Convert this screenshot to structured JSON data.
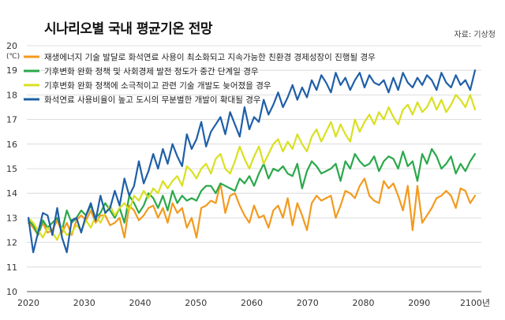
{
  "chart_data": {
    "type": "line",
    "title": "시나리오별 국내 평균기온 전망",
    "source": "자료: 기상청",
    "y_unit": "(℃)",
    "ylim": [
      10,
      20
    ],
    "y_ticks": [
      11,
      12,
      13,
      14,
      15,
      16,
      17,
      18,
      19,
      20
    ],
    "y_tick_label_bottom": "10",
    "x_ticks": [
      "2020",
      "2030",
      "2040",
      "2050",
      "2060",
      "2070",
      "2080",
      "2090",
      "2100년"
    ],
    "xlim": [
      2020,
      2100
    ],
    "grid": "horizontal",
    "legend": "top-left",
    "x_start": 2020,
    "x_step": 2,
    "series": [
      {
        "name": "재생에너지 기술 발달로 화석연료 사용이 최소화되고 지속가능한 친환경 경제성장이 진행될 경우",
        "color": "#f39a1e",
        "values": [
          12.8,
          12.6,
          12.3,
          12.8,
          12.4,
          12.5,
          12.9,
          12.4,
          12.8,
          12.3,
          12.9,
          13.1,
          12.9,
          13.3,
          12.8,
          13.1,
          13.1,
          12.7,
          12.8,
          13.0,
          12.2,
          13.5,
          13.3,
          12.9,
          13.1,
          13.4,
          13.5,
          13.0,
          13.4,
          12.8,
          13.6,
          13.2,
          13.4,
          12.6,
          13.0,
          12.2,
          13.4,
          13.5,
          13.7,
          13.6,
          14.4,
          13.2,
          13.9,
          14.0,
          13.5,
          13.1,
          12.8,
          13.5,
          13.0,
          13.1,
          12.6,
          13.3,
          13.5,
          13.0,
          13.8,
          12.7,
          13.6,
          13.1,
          12.5,
          13.6,
          13.9,
          13.7,
          13.8,
          13.9,
          13.0,
          13.5,
          14.1,
          14.0,
          13.8,
          14.3,
          14.6,
          13.9,
          13.7,
          13.6,
          14.5,
          14.2,
          14.4,
          13.9,
          13.3,
          14.3,
          12.5,
          14.3,
          12.8,
          13.1,
          13.4,
          13.8,
          13.9,
          14.1,
          13.9,
          13.4,
          14.2,
          14.1,
          13.6,
          13.9
        ]
      },
      {
        "name": "기후변화 완화 정책 및 사회경제 발전 정도가 중간 단계일 경우",
        "color": "#2aa84a",
        "values": [
          12.9,
          12.7,
          12.3,
          12.9,
          12.6,
          12.8,
          13.0,
          12.5,
          13.3,
          12.8,
          13.0,
          13.3,
          13.1,
          13.5,
          13.0,
          13.2,
          13.6,
          13.3,
          13.0,
          13.4,
          12.8,
          13.9,
          13.6,
          13.2,
          13.5,
          14.0,
          13.8,
          13.4,
          13.9,
          13.3,
          14.1,
          13.6,
          13.9,
          13.7,
          13.8,
          13.7,
          14.1,
          14.3,
          14.3,
          14.0,
          14.4,
          14.3,
          14.2,
          14.1,
          14.6,
          14.4,
          14.7,
          14.3,
          14.8,
          15.2,
          14.6,
          15.0,
          14.9,
          15.1,
          14.8,
          14.7,
          15.2,
          14.2,
          14.9,
          15.3,
          15.1,
          14.8,
          14.9,
          15.0,
          15.2,
          14.5,
          15.3,
          15.0,
          15.6,
          15.3,
          15.1,
          15.2,
          15.5,
          14.9,
          15.3,
          15.5,
          15.4,
          15.0,
          15.7,
          15.1,
          15.3,
          14.5,
          15.6,
          15.2,
          15.8,
          15.5,
          15.0,
          15.2,
          15.5,
          14.8,
          15.2,
          14.9,
          15.3,
          15.6
        ]
      },
      {
        "name": "기후변화 완화 정책에 소극적이고 관련 기술 개발도 늦어졌을 경우",
        "color": "#d9e021",
        "values": [
          13.0,
          12.8,
          12.5,
          12.2,
          12.6,
          12.4,
          12.1,
          12.6,
          12.3,
          12.4,
          12.7,
          12.5,
          12.9,
          12.6,
          13.1,
          12.8,
          13.2,
          13.5,
          13.1,
          13.4,
          13.6,
          13.3,
          13.9,
          13.7,
          14.1,
          13.8,
          14.2,
          14.0,
          14.5,
          14.2,
          14.5,
          14.7,
          14.3,
          15.1,
          14.9,
          14.6,
          15.0,
          15.2,
          14.8,
          15.4,
          15.6,
          15.0,
          14.8,
          15.3,
          15.9,
          15.4,
          15.0,
          15.5,
          15.9,
          15.2,
          15.6,
          16.0,
          16.2,
          15.7,
          16.1,
          15.8,
          16.4,
          16.0,
          15.7,
          16.3,
          16.6,
          16.1,
          16.5,
          16.9,
          16.3,
          16.8,
          16.4,
          16.1,
          17.0,
          16.5,
          16.9,
          17.2,
          16.8,
          17.3,
          17.0,
          17.5,
          17.1,
          16.8,
          17.4,
          17.6,
          17.2,
          17.7,
          17.3,
          17.5,
          17.9,
          17.4,
          17.8,
          17.3,
          17.6,
          18.0,
          17.8,
          17.5,
          18.0,
          17.4
        ]
      },
      {
        "name": "화석연료 사용비율이 높고 도시의 무분별한 개발이 확대될 경우",
        "color": "#1f5fa8",
        "values": [
          13.0,
          11.6,
          12.4,
          13.2,
          13.1,
          12.3,
          13.4,
          12.2,
          11.6,
          12.9,
          13.0,
          12.4,
          13.1,
          13.6,
          12.9,
          13.9,
          13.2,
          13.4,
          14.1,
          13.5,
          14.6,
          13.9,
          14.3,
          15.3,
          14.4,
          14.9,
          15.6,
          15.0,
          15.8,
          15.2,
          16.0,
          15.5,
          15.1,
          16.4,
          15.8,
          16.2,
          16.9,
          15.9,
          16.5,
          16.8,
          17.1,
          16.4,
          17.3,
          16.8,
          16.3,
          17.5,
          16.6,
          17.1,
          16.9,
          17.8,
          17.2,
          17.6,
          18.1,
          17.5,
          17.9,
          18.4,
          17.8,
          18.3,
          17.9,
          18.6,
          18.2,
          18.8,
          18.5,
          18.1,
          18.9,
          18.4,
          18.7,
          18.2,
          18.6,
          18.9,
          18.3,
          18.8,
          18.5,
          18.4,
          18.6,
          18.1,
          18.7,
          18.2,
          18.9,
          18.5,
          18.3,
          18.7,
          18.4,
          18.8,
          18.6,
          18.2,
          18.9,
          18.5,
          18.3,
          18.8,
          18.4,
          18.6,
          18.2,
          19.0
        ]
      }
    ]
  }
}
